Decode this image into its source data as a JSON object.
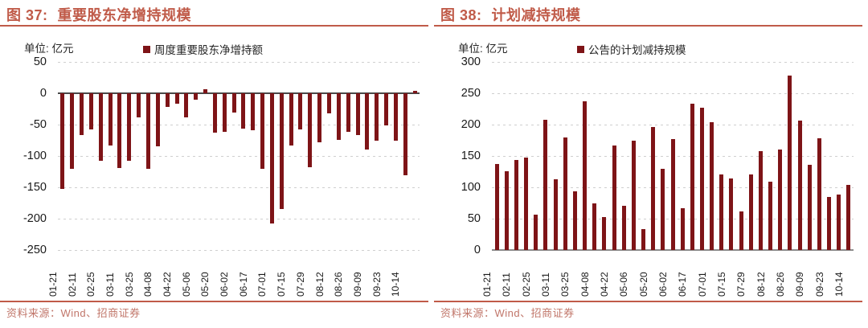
{
  "colors": {
    "accent": "#C05B49",
    "footer_text": "#C1766A",
    "bar": "#7E1417",
    "grid": "#CFCFCF",
    "tick_text": "#1A1A1A"
  },
  "chart_data": [
    {
      "type": "bar",
      "figure_label": "图 37:",
      "title": "重要股东净增持规模",
      "unit_label": "单位: 亿元",
      "legend": "周度重要股东净增持额",
      "source_note": "资料来源：Wind、招商证券",
      "bar_color": "#7E1417",
      "zero_axis_color": "#4A4A4A",
      "ylim": [
        -250,
        50
      ],
      "yticks": [
        50,
        0,
        -50,
        -100,
        -150,
        -200,
        -250
      ],
      "grid": true,
      "legend_position": "top",
      "x_tick_labels": [
        "01-21",
        "02-11",
        "02-25",
        "03-11",
        "03-25",
        "04-08",
        "04-22",
        "05-06",
        "05-20",
        "06-02",
        "06-17",
        "07-01",
        "07-15",
        "07-29",
        "08-12",
        "08-26",
        "09-09",
        "09-23",
        "10-14"
      ],
      "label_every_n_bars": 2,
      "values": [
        -152,
        -121,
        -66,
        -58,
        -107,
        -83,
        -119,
        -107,
        -39,
        -120,
        -85,
        -22,
        -16,
        -39,
        -10,
        6,
        -63,
        -62,
        -31,
        -56,
        -59,
        -120,
        -207,
        -185,
        -83,
        -57,
        -118,
        -78,
        -32,
        -74,
        -61,
        -66,
        -90,
        -76,
        -51,
        -76,
        -131,
        4
      ]
    },
    {
      "type": "bar",
      "figure_label": "图 38:",
      "title": "计划减持规模",
      "unit_label": "单位: 亿元",
      "legend": "公告的计划减持规模",
      "source_note": "资料来源：Wind、招商证券",
      "bar_color": "#7E1417",
      "zero_axis_color": "#8C8C8C",
      "ylim": [
        0,
        300
      ],
      "yticks": [
        300,
        250,
        200,
        150,
        100,
        50,
        0
      ],
      "grid": true,
      "legend_position": "top",
      "x_tick_labels": [
        "01-21",
        "02-11",
        "02-25",
        "03-11",
        "03-25",
        "04-08",
        "04-22",
        "05-06",
        "05-20",
        "06-02",
        "06-17",
        "07-01",
        "07-15",
        "07-29",
        "08-12",
        "08-26",
        "09-09",
        "09-23",
        "10-14"
      ],
      "label_every_n_bars": 2,
      "values": [
        137,
        126,
        144,
        147,
        56,
        208,
        113,
        179,
        94,
        237,
        75,
        53,
        167,
        71,
        174,
        33,
        196,
        130,
        177,
        67,
        234,
        227,
        204,
        120,
        114,
        61,
        121,
        158,
        109,
        160,
        278,
        207,
        136,
        178,
        85,
        88,
        104
      ]
    }
  ]
}
